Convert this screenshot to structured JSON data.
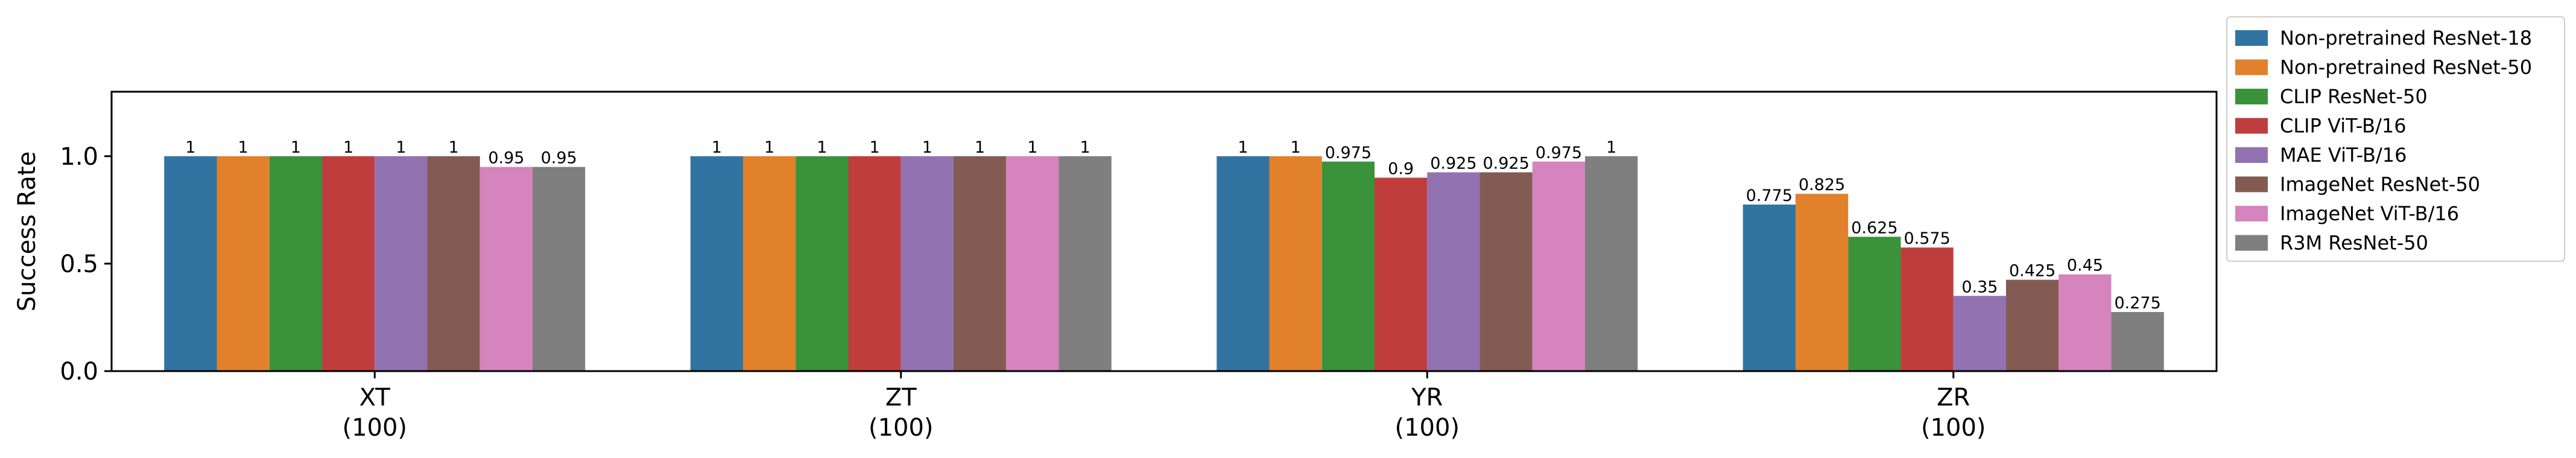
{
  "chart_data": {
    "type": "bar",
    "ylabel": "Success Rate",
    "xlabel": "",
    "ylim": [
      0,
      1.3
    ],
    "yticks": [
      "0.0",
      "0.5",
      "1.0"
    ],
    "categories": [
      {
        "name": "XT",
        "count": "(100)"
      },
      {
        "name": "ZT",
        "count": "(100)"
      },
      {
        "name": "YR",
        "count": "(100)"
      },
      {
        "name": "ZR",
        "count": "(100)"
      }
    ],
    "legend_position": "outside-top-right",
    "grid": false,
    "series": [
      {
        "name": "Non-pretrained ResNet-18",
        "color": "#3274a1",
        "values": [
          1,
          1,
          1,
          0.775
        ],
        "labels": [
          "1",
          "1",
          "1",
          "0.775"
        ]
      },
      {
        "name": "Non-pretrained ResNet-50",
        "color": "#e1812c",
        "values": [
          1,
          1,
          1,
          0.825
        ],
        "labels": [
          "1",
          "1",
          "1",
          "0.825"
        ]
      },
      {
        "name": "CLIP ResNet-50",
        "color": "#3a923a",
        "values": [
          1,
          1,
          0.975,
          0.625
        ],
        "labels": [
          "1",
          "1",
          "0.975",
          "0.625"
        ]
      },
      {
        "name": "CLIP ViT-B/16",
        "color": "#c03d3e",
        "values": [
          1,
          1,
          0.9,
          0.575
        ],
        "labels": [
          "1",
          "1",
          "0.9",
          "0.575"
        ]
      },
      {
        "name": "MAE ViT-B/16",
        "color": "#9372b2",
        "values": [
          1,
          1,
          0.925,
          0.35
        ],
        "labels": [
          "1",
          "1",
          "0.925",
          "0.35"
        ]
      },
      {
        "name": "ImageNet ResNet-50",
        "color": "#845b53",
        "values": [
          1,
          1,
          0.925,
          0.425
        ],
        "labels": [
          "1",
          "1",
          "0.925",
          "0.425"
        ]
      },
      {
        "name": "ImageNet ViT-B/16",
        "color": "#d684bd",
        "values": [
          0.95,
          1,
          0.975,
          0.45
        ],
        "labels": [
          "0.95",
          "1",
          "0.975",
          "0.45"
        ]
      },
      {
        "name": "R3M ResNet-50",
        "color": "#7f7f7f",
        "values": [
          0.95,
          1,
          1,
          0.275
        ],
        "labels": [
          "0.95",
          "1",
          "1",
          "0.275"
        ]
      }
    ]
  }
}
